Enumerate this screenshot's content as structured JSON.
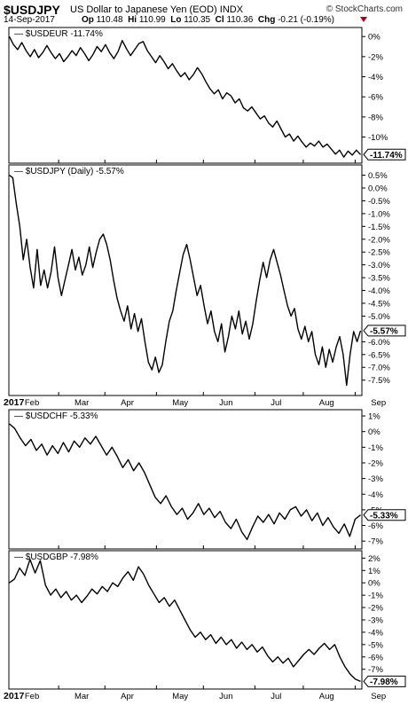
{
  "header": {
    "symbol": "$USDJPY",
    "description": "US Dollar to Japanese Yen (EOD)",
    "exchange": "INDX",
    "brand": "© StockCharts.com",
    "date": "14-Sep-2017",
    "open_label": "Op",
    "open": "110.48",
    "high_label": "Hi",
    "high": "110.99",
    "low_label": "Lo",
    "low": "110.35",
    "close_label": "Cl",
    "close": "110.36",
    "change_label": "Chg",
    "change": "-0.21 (-0.19%)",
    "change_color": "#b00020"
  },
  "chart_data": [
    {
      "type": "line",
      "title": "$USDEUR -11.74%",
      "last_value": -11.74,
      "last_label": "-11.74%",
      "ylim": [
        -12.6,
        0.9
      ],
      "yticks": [
        0,
        -2,
        -4,
        -6,
        -8,
        -10
      ],
      "ytick_labels": [
        "0%",
        "-2%",
        "-4%",
        "-6%",
        "-8%",
        "-10%"
      ],
      "series": [
        {
          "values": [
            0,
            -0.8,
            -1.3,
            -0.6,
            -1.4,
            -2.0,
            -1.3,
            -2.1,
            -1.6,
            -0.9,
            -1.6,
            -2.2,
            -1.7,
            -2.5,
            -2.0,
            -1.4,
            -1.9,
            -1.1,
            -1.7,
            -2.4,
            -1.8,
            -1.0,
            -1.5,
            -0.8,
            -1.6,
            -2.2,
            -1.5,
            -0.4,
            -1.2,
            -1.9,
            -1.3,
            -0.7,
            -0.5,
            -1.4,
            -2.0,
            -2.6,
            -1.9,
            -2.5,
            -3.2,
            -2.7,
            -3.4,
            -4.0,
            -3.6,
            -4.3,
            -3.8,
            -3.1,
            -3.7,
            -4.5,
            -5.2,
            -5.7,
            -5.3,
            -6.2,
            -5.6,
            -5.9,
            -6.6,
            -6.2,
            -7.1,
            -7.4,
            -7.0,
            -7.6,
            -8.2,
            -7.9,
            -8.6,
            -9.0,
            -8.4,
            -9.2,
            -10.0,
            -9.7,
            -10.4,
            -9.9,
            -10.5,
            -11.0,
            -10.6,
            -10.9,
            -10.4,
            -11.0,
            -10.7,
            -11.2,
            -11.7,
            -11.3,
            -12.0,
            -11.4,
            -11.8,
            -11.3,
            -11.74
          ]
        }
      ]
    },
    {
      "type": "line",
      "title": "$USDJPY (Daily) -5.57%",
      "last_value": -5.57,
      "last_label": "-5.57%",
      "ylim": [
        -8.1,
        0.9
      ],
      "yticks": [
        0.5,
        0,
        -0.5,
        -1,
        -1.5,
        -2,
        -2.5,
        -3,
        -3.5,
        -4,
        -4.5,
        -5,
        -6,
        -6.5,
        -7,
        -7.5
      ],
      "ytick_labels": [
        "0.5%",
        "0.0%",
        "-0.5%",
        "-1.0%",
        "-1.5%",
        "-2.0%",
        "-2.5%",
        "-3.0%",
        "-3.5%",
        "-4.0%",
        "-4.5%",
        "-5.0%",
        "-6.0%",
        "-6.5%",
        "-7.0%",
        "-7.5%"
      ],
      "xlabels": [
        "2017",
        "Feb",
        "Mar",
        "Apr",
        "May",
        "Jun",
        "Jul",
        "Aug",
        "Sep"
      ],
      "series": [
        {
          "values": [
            0.5,
            0.4,
            -0.6,
            -1.5,
            -2.8,
            -2.0,
            -3.1,
            -3.9,
            -2.4,
            -3.8,
            -3.2,
            -3.9,
            -3.3,
            -2.3,
            -3.5,
            -4.2,
            -3.6,
            -3.0,
            -2.4,
            -3.2,
            -2.7,
            -3.4,
            -3.0,
            -2.3,
            -3.1,
            -2.5,
            -2.0,
            -1.8,
            -2.2,
            -2.8,
            -3.6,
            -4.3,
            -4.8,
            -5.2,
            -4.6,
            -5.5,
            -4.9,
            -5.6,
            -5.1,
            -6.0,
            -6.8,
            -7.1,
            -6.6,
            -7.2,
            -6.9,
            -6.0,
            -5.2,
            -4.8,
            -4.0,
            -3.3,
            -2.6,
            -2.2,
            -2.8,
            -3.5,
            -4.2,
            -3.8,
            -4.6,
            -5.3,
            -4.8,
            -5.6,
            -6.0,
            -5.3,
            -6.4,
            -5.8,
            -5.0,
            -5.5,
            -4.8,
            -5.7,
            -5.2,
            -5.9,
            -5.3,
            -4.4,
            -3.6,
            -2.9,
            -3.5,
            -2.8,
            -2.4,
            -2.9,
            -3.4,
            -4.0,
            -4.6,
            -5.0,
            -4.7,
            -5.5,
            -5.9,
            -5.4,
            -6.0,
            -5.6,
            -6.5,
            -6.9,
            -6.2,
            -7.0,
            -6.3,
            -6.8,
            -6.2,
            -5.8,
            -6.5,
            -7.7,
            -6.5,
            -5.6,
            -6.0,
            -5.57
          ]
        }
      ]
    },
    {
      "type": "line",
      "title": "$USDCHF -5.33%",
      "last_value": -5.33,
      "last_label": "-5.33%",
      "ylim": [
        -7.5,
        1.4
      ],
      "yticks": [
        1,
        0,
        -1,
        -2,
        -3,
        -4,
        -5,
        -6,
        -7
      ],
      "ytick_labels": [
        "1%",
        "0%",
        "-1%",
        "-2%",
        "-3%",
        "-4%",
        "-5%",
        "-6%",
        "-7%"
      ],
      "series": [
        {
          "values": [
            0.5,
            0.2,
            -0.4,
            -0.9,
            -0.5,
            -1.2,
            -0.8,
            -1.5,
            -0.9,
            -1.4,
            -0.7,
            -1.3,
            -0.6,
            -1.0,
            -0.4,
            -0.8,
            -0.3,
            -0.9,
            -1.5,
            -1.0,
            -1.6,
            -2.3,
            -1.8,
            -2.5,
            -2.0,
            -2.6,
            -3.4,
            -4.2,
            -4.6,
            -4.1,
            -4.8,
            -5.3,
            -4.9,
            -5.6,
            -5.2,
            -4.6,
            -5.3,
            -4.9,
            -5.5,
            -5.1,
            -5.8,
            -6.2,
            -5.6,
            -6.4,
            -6.9,
            -6.1,
            -5.4,
            -5.8,
            -5.3,
            -5.9,
            -5.2,
            -5.6,
            -5.0,
            -4.8,
            -5.4,
            -5.0,
            -5.7,
            -5.2,
            -6.0,
            -5.5,
            -6.1,
            -6.5,
            -5.9,
            -6.7,
            -5.6,
            -5.33
          ]
        }
      ]
    },
    {
      "type": "line",
      "title": "$USDGBP -7.98%",
      "last_value": -7.98,
      "last_label": "-7.98%",
      "ylim": [
        -8.6,
        2.6
      ],
      "yticks": [
        2,
        1,
        0,
        -1,
        -2,
        -3,
        -4,
        -5,
        -6,
        -7
      ],
      "ytick_labels": [
        "2%",
        "1%",
        "0%",
        "-1%",
        "-2%",
        "-3%",
        "-4%",
        "-5%",
        "-6%",
        "-7%"
      ],
      "xlabels": [
        "2017",
        "Feb",
        "Mar",
        "Apr",
        "May",
        "Jun",
        "Jul",
        "Aug",
        "Sep"
      ],
      "series": [
        {
          "values": [
            0,
            0.3,
            1.2,
            0.6,
            1.9,
            0.8,
            1.8,
            -0.2,
            -1.0,
            -0.5,
            -1.2,
            -0.7,
            -1.4,
            -1.0,
            -1.6,
            -1.1,
            -0.5,
            -0.9,
            -0.3,
            -0.7,
            0.0,
            -0.3,
            0.4,
            0.9,
            0.2,
            1.3,
            0.7,
            -0.2,
            -0.9,
            -1.6,
            -1.2,
            -1.9,
            -1.4,
            -2.2,
            -3.0,
            -3.8,
            -4.4,
            -4.0,
            -4.6,
            -4.2,
            -4.9,
            -4.4,
            -5.0,
            -4.6,
            -5.3,
            -4.8,
            -5.4,
            -5.0,
            -5.6,
            -5.2,
            -5.9,
            -6.4,
            -6.0,
            -6.5,
            -6.1,
            -6.8,
            -6.3,
            -5.8,
            -5.4,
            -5.8,
            -5.3,
            -4.9,
            -5.4,
            -5.0,
            -6.0,
            -6.8,
            -7.4,
            -7.8,
            -7.98
          ]
        }
      ]
    }
  ]
}
